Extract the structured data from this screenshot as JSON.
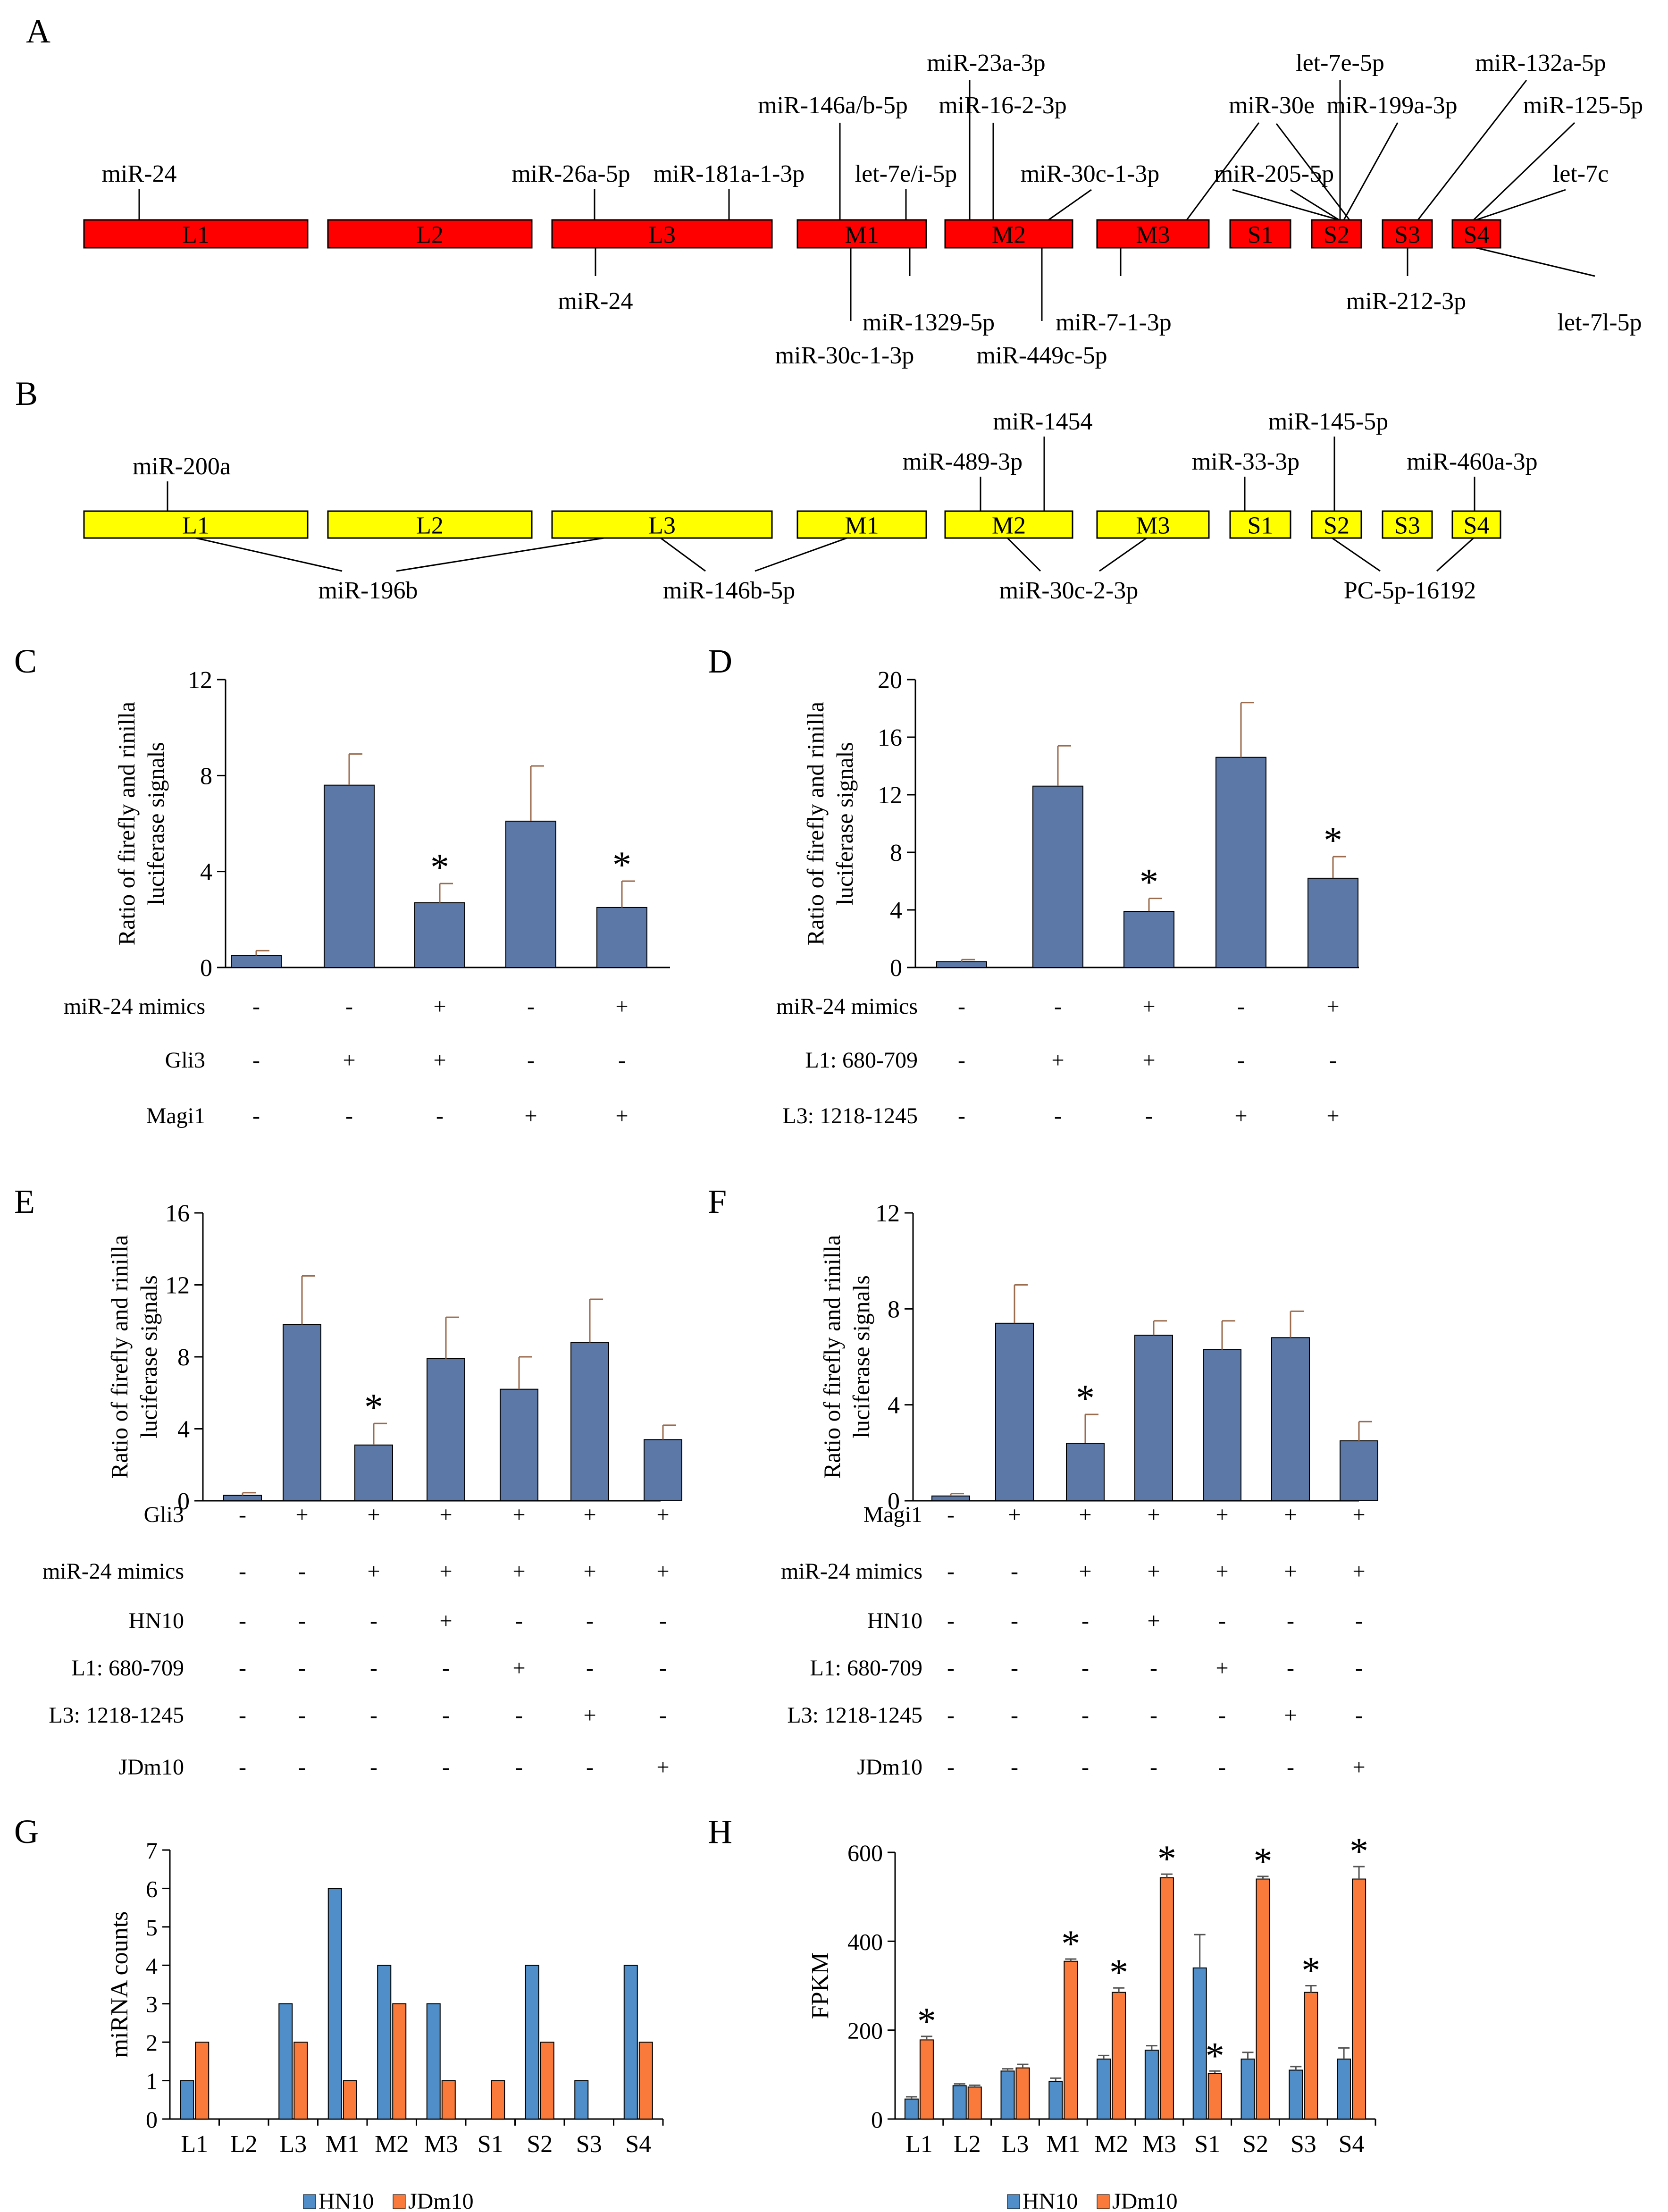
{
  "figure": {
    "panel_letters": [
      "A",
      "B",
      "C",
      "D",
      "E",
      "F",
      "G",
      "H"
    ],
    "colors": {
      "segment_a": "#ff0000",
      "segment_b": "#ffff00",
      "bar": "#5b78a6",
      "error_bar": "#9b6b4e",
      "hn10": "#4f8ec9",
      "jdm10": "#f97a3a"
    }
  },
  "segments": [
    "L1",
    "L2",
    "L3",
    "M1",
    "M2",
    "M3",
    "S1",
    "S2",
    "S3",
    "S4"
  ],
  "panel_a": {
    "top_labels": [
      "miR-24",
      "miR-26a-5p",
      "miR-181a-1-3p",
      "miR-146a/b-5p",
      "let-7e/i-5p",
      "miR-23a-3p",
      "miR-16-2-3p",
      "miR-30c-1-3p",
      "miR-30e",
      "miR-205-5p",
      "let-7e-5p",
      "miR-199a-3p",
      "miR-132a-5p",
      "miR-125-5p",
      "let-7c"
    ],
    "bottom_labels": [
      "miR-24",
      "miR-1329-5p",
      "miR-30c-1-3p",
      "miR-449c-5p",
      "miR-7-1-3p",
      "miR-212-3p",
      "let-7l-5p"
    ]
  },
  "panel_b": {
    "top_labels": [
      "miR-200a",
      "miR-489-3p",
      "miR-1454",
      "miR-33-3p",
      "miR-145-5p",
      "miR-460a-3p"
    ],
    "bottom_labels": [
      "miR-196b",
      "miR-146b-5p",
      "miR-30c-2-3p",
      "PC-5p-16192"
    ]
  },
  "chart_data": [
    {
      "panel": "C",
      "type": "bar",
      "ylabel_lines": [
        "Ratio of  firefly and rinilla",
        "luciferase signals"
      ],
      "ylim": [
        0,
        12
      ],
      "yticks": [
        0,
        4,
        8,
        12
      ],
      "values": [
        0.5,
        7.6,
        2.7,
        6.1,
        2.5
      ],
      "errors": [
        0.2,
        1.3,
        0.8,
        2.3,
        1.1
      ],
      "significant": [
        false,
        false,
        true,
        false,
        true
      ],
      "conditions": [
        {
          "label": "miR-24 mimics",
          "marks": [
            "-",
            "-",
            "+",
            "-",
            "+"
          ]
        },
        {
          "label": "Gli3",
          "marks": [
            "-",
            "+",
            "+",
            "-",
            "-"
          ]
        },
        {
          "label": "Magi1",
          "marks": [
            "-",
            "-",
            "-",
            "+",
            "+"
          ]
        }
      ]
    },
    {
      "panel": "D",
      "type": "bar",
      "ylabel_lines": [
        "Ratio of  firefly and rinilla",
        "luciferase signals"
      ],
      "ylim": [
        0,
        20
      ],
      "yticks": [
        0,
        4,
        8,
        12,
        16,
        20
      ],
      "values": [
        0.4,
        12.6,
        3.9,
        14.6,
        6.2
      ],
      "errors": [
        0.15,
        2.8,
        0.9,
        3.8,
        1.5
      ],
      "significant": [
        false,
        false,
        true,
        false,
        true
      ],
      "conditions": [
        {
          "label": "miR-24 mimics",
          "marks": [
            "-",
            "-",
            "+",
            "-",
            "+"
          ]
        },
        {
          "label": "L1: 680-709",
          "marks": [
            "-",
            "+",
            "+",
            "-",
            "-"
          ]
        },
        {
          "label": "L3: 1218-1245",
          "marks": [
            "-",
            "-",
            "-",
            "+",
            "+"
          ]
        }
      ]
    },
    {
      "panel": "E",
      "type": "bar",
      "ylabel_lines": [
        "Ratio of  firefly and rinilla",
        "luciferase signals"
      ],
      "ylim": [
        0,
        16
      ],
      "yticks": [
        0,
        4,
        8,
        12,
        16
      ],
      "values": [
        0.3,
        9.8,
        3.1,
        7.9,
        6.2,
        8.8,
        3.4
      ],
      "errors": [
        0.15,
        2.7,
        1.2,
        2.3,
        1.8,
        2.4,
        0.8
      ],
      "significant": [
        false,
        false,
        true,
        false,
        false,
        false,
        false
      ],
      "conditions": [
        {
          "label": "Gli3",
          "marks": [
            "-",
            "+",
            "+",
            "+",
            "+",
            "+",
            "+"
          ]
        },
        {
          "label": "miR-24 mimics",
          "marks": [
            "-",
            "-",
            "+",
            "+",
            "+",
            "+",
            "+"
          ]
        },
        {
          "label": "HN10",
          "marks": [
            "-",
            "-",
            "-",
            "+",
            "-",
            "-",
            "-"
          ]
        },
        {
          "label": "L1: 680-709",
          "marks": [
            "-",
            "-",
            "-",
            "-",
            "+",
            "-",
            "-"
          ]
        },
        {
          "label": "L3: 1218-1245",
          "marks": [
            "-",
            "-",
            "-",
            "-",
            "-",
            "+",
            "-"
          ]
        },
        {
          "label": "JDm10",
          "marks": [
            "-",
            "-",
            "-",
            "-",
            "-",
            "-",
            "+"
          ]
        }
      ]
    },
    {
      "panel": "F",
      "type": "bar",
      "ylabel_lines": [
        "Ratio of  firefly and rinilla",
        "luciferase signals"
      ],
      "ylim": [
        0,
        12
      ],
      "yticks": [
        0,
        4,
        8,
        12
      ],
      "values": [
        0.2,
        7.4,
        2.4,
        6.9,
        6.3,
        6.8,
        2.5
      ],
      "errors": [
        0.1,
        1.6,
        1.2,
        0.6,
        1.2,
        1.1,
        0.8
      ],
      "significant": [
        false,
        false,
        true,
        false,
        false,
        false,
        false
      ],
      "conditions": [
        {
          "label": "Magi1",
          "marks": [
            "-",
            "+",
            "+",
            "+",
            "+",
            "+",
            "+"
          ]
        },
        {
          "label": "miR-24 mimics",
          "marks": [
            "-",
            "-",
            "+",
            "+",
            "+",
            "+",
            "+"
          ]
        },
        {
          "label": "HN10",
          "marks": [
            "-",
            "-",
            "-",
            "+",
            "-",
            "-",
            "-"
          ]
        },
        {
          "label": "L1: 680-709",
          "marks": [
            "-",
            "-",
            "-",
            "-",
            "+",
            "-",
            "-"
          ]
        },
        {
          "label": "L3: 1218-1245",
          "marks": [
            "-",
            "-",
            "-",
            "-",
            "-",
            "+",
            "-"
          ]
        },
        {
          "label": "JDm10",
          "marks": [
            "-",
            "-",
            "-",
            "-",
            "-",
            "-",
            "+"
          ]
        }
      ]
    },
    {
      "panel": "G",
      "type": "bar",
      "ylabel": "miRNA counts",
      "ylim": [
        0,
        7
      ],
      "yticks": [
        0,
        1,
        2,
        3,
        4,
        5,
        6,
        7
      ],
      "categories": [
        "L1",
        "L2",
        "L3",
        "M1",
        "M2",
        "M3",
        "S1",
        "S2",
        "S3",
        "S4"
      ],
      "series": [
        {
          "name": "HN10",
          "values": [
            1,
            0,
            3,
            6,
            4,
            3,
            0,
            4,
            1,
            4
          ]
        },
        {
          "name": "JDm10",
          "values": [
            2,
            0,
            2,
            1,
            3,
            1,
            1,
            2,
            0,
            2
          ]
        }
      ],
      "legend": "bottom"
    },
    {
      "panel": "H",
      "type": "bar",
      "ylabel": "FPKM",
      "ylim": [
        0,
        600
      ],
      "yticks": [
        0,
        200,
        400,
        600
      ],
      "categories": [
        "L1",
        "L2",
        "L3",
        "M1",
        "M2",
        "M3",
        "S1",
        "S2",
        "S3",
        "S4"
      ],
      "series": [
        {
          "name": "HN10",
          "values": [
            45,
            75,
            108,
            85,
            135,
            155,
            340,
            135,
            110,
            135
          ],
          "errors": [
            5,
            4,
            5,
            7,
            8,
            10,
            75,
            15,
            8,
            25
          ],
          "significant": [
            false,
            false,
            false,
            false,
            false,
            false,
            false,
            false,
            false,
            false
          ]
        },
        {
          "name": "JDm10",
          "values": [
            178,
            72,
            115,
            355,
            285,
            543,
            103,
            540,
            285,
            540
          ],
          "errors": [
            8,
            4,
            8,
            5,
            10,
            8,
            5,
            6,
            15,
            28
          ],
          "significant": [
            true,
            false,
            false,
            true,
            true,
            true,
            true,
            true,
            true,
            true
          ]
        }
      ],
      "legend": "bottom"
    }
  ]
}
